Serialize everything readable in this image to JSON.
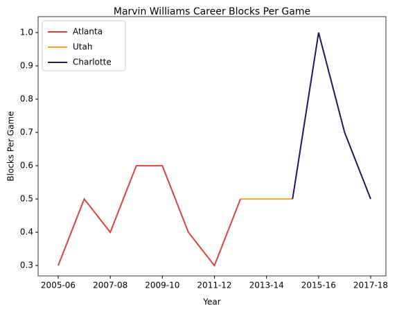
{
  "chart_data": {
    "type": "line",
    "title": "Marvin Williams Career Blocks Per Game",
    "xlabel": "Year",
    "ylabel": "Blocks Per Game",
    "categories": [
      "2005-06",
      null,
      "2007-08",
      null,
      "2009-10",
      null,
      "2011-12",
      null,
      "2013-14",
      null,
      "2015-16",
      null,
      "2017-18"
    ],
    "series": [
      {
        "name": "Atlanta",
        "color": "#d94040",
        "values": [
          0.3,
          0.5,
          0.4,
          0.6,
          0.6,
          0.4,
          0.3,
          0.5,
          null,
          null,
          null,
          null,
          null
        ]
      },
      {
        "name": "Utah",
        "color": "#f0a030",
        "values": [
          null,
          null,
          null,
          null,
          null,
          null,
          null,
          0.5,
          0.5,
          0.5,
          null,
          null,
          null
        ]
      },
      {
        "name": "Charlotte",
        "color": "#1d1660",
        "values": [
          null,
          null,
          null,
          null,
          null,
          null,
          null,
          null,
          null,
          0.5,
          1.0,
          0.7,
          0.5
        ]
      }
    ],
    "ylim": [
      0.269,
      1.048
    ],
    "yticks": [
      0.3,
      0.4,
      0.5,
      0.6,
      0.7,
      0.8,
      0.9,
      {
        "value": 1,
        "label": "1.0"
      }
    ],
    "legend": "upper left"
  }
}
